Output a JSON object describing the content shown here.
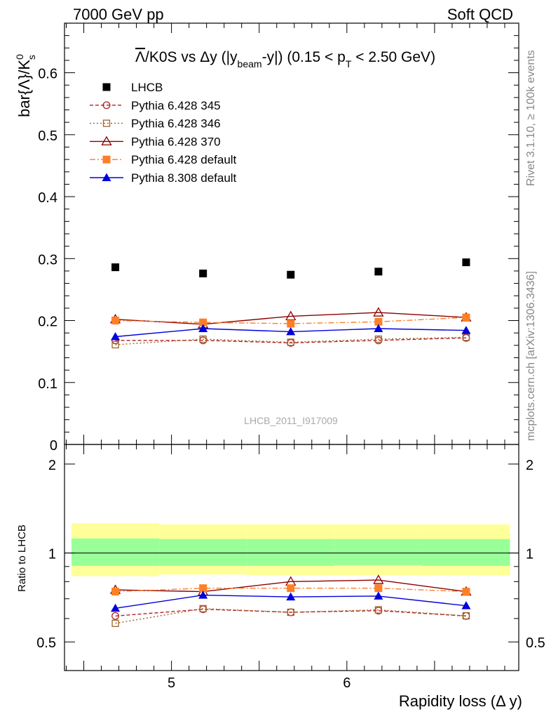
{
  "header": {
    "left": "7000 GeV pp",
    "right": "Soft QCD"
  },
  "side_labels": {
    "rivet": "Rivet 3.1.10, ≥ 100k events",
    "mcplots": "mcplots.cern.ch [arXiv:1306.3436]"
  },
  "title": {
    "overline": "Λ",
    "rest": "/K0S vs Δy (|y",
    "sub_beam": "beam",
    "mid": "-y|) (0.15 < p",
    "sub_t": "T",
    "end": " < 2.50 GeV)"
  },
  "watermark": "LHCB_2011_I917009",
  "chart_data": [
    {
      "type": "scatter",
      "panel": "main",
      "ylabel_main": "bar{Λ}/K",
      "ylabel_sup": "0",
      "ylabel_sub": "s",
      "ylim": [
        0,
        0.68
      ],
      "yticks": [
        {
          "v": 0,
          "label": "0"
        },
        {
          "v": 0.1,
          "label": "0.1"
        },
        {
          "v": 0.2,
          "label": "0.2"
        },
        {
          "v": 0.3,
          "label": "0.3"
        },
        {
          "v": 0.4,
          "label": "0.4"
        },
        {
          "v": 0.5,
          "label": "0.5"
        },
        {
          "v": 0.6,
          "label": "0.6"
        }
      ],
      "xlim": [
        4.39,
        6.98
      ],
      "x": [
        4.68,
        5.18,
        5.68,
        6.18,
        6.68
      ],
      "series": [
        {
          "name": "LHCB",
          "values": [
            0.286,
            0.276,
            0.274,
            0.279,
            0.294
          ],
          "color": "#000000",
          "marker": "square-filled",
          "line": "none"
        },
        {
          "name": "Pythia 6.428 345",
          "values": [
            0.168,
            0.168,
            0.164,
            0.168,
            0.172
          ],
          "color": "#b22222",
          "marker": "circle-open",
          "line": "dashed"
        },
        {
          "name": "Pythia 6.428 346",
          "values": [
            0.161,
            0.17,
            0.165,
            0.17,
            0.173
          ],
          "color": "#a0642a",
          "marker": "square-open",
          "line": "dotted"
        },
        {
          "name": "Pythia 6.428 370",
          "values": [
            0.202,
            0.194,
            0.207,
            0.213,
            0.205
          ],
          "color": "#8b0000",
          "marker": "triangle-open",
          "line": "solid"
        },
        {
          "name": "Pythia 6.428 default",
          "values": [
            0.2,
            0.197,
            0.195,
            0.198,
            0.205
          ],
          "color": "#ff7f27",
          "marker": "square-filled",
          "line": "dashdot"
        },
        {
          "name": "Pythia 8.308 default",
          "values": [
            0.174,
            0.187,
            0.182,
            0.187,
            0.184
          ],
          "color": "#0000dd",
          "marker": "triangle-filled",
          "line": "solid"
        }
      ]
    },
    {
      "type": "line",
      "panel": "ratio",
      "ylabel": "Ratio to LHCB",
      "ylim": [
        0.4,
        2.33
      ],
      "yticks": [
        {
          "v": 0.5,
          "label": "0.5"
        },
        {
          "v": 1,
          "label": "1"
        },
        {
          "v": 2,
          "label": "2"
        }
      ],
      "xlabel": "Rapidity loss (Δ y)",
      "xticks": [
        {
          "v": 5,
          "label": "5"
        },
        {
          "v": 6,
          "label": "6"
        }
      ],
      "bands": {
        "x_edges": [
          4.43,
          4.93,
          5.43,
          5.93,
          6.43,
          6.93
        ],
        "yellow_lo": [
          0.835,
          0.845,
          0.84,
          0.84,
          0.84
        ],
        "yellow_hi": [
          1.26,
          1.25,
          1.25,
          1.25,
          1.25
        ],
        "green_lo": [
          0.905,
          0.905,
          0.905,
          0.91,
          0.905
        ],
        "green_hi": [
          1.12,
          1.115,
          1.115,
          1.115,
          1.115
        ],
        "yellow_color": "#ffff99",
        "green_color": "#99ff99"
      },
      "x": [
        4.68,
        5.18,
        5.68,
        6.18,
        6.68
      ],
      "series": [
        {
          "name": "Pythia 6.428 345",
          "values": [
            0.612,
            0.645,
            0.63,
            0.638,
            0.612
          ],
          "color": "#b22222",
          "marker": "circle-open",
          "line": "dashed"
        },
        {
          "name": "Pythia 6.428 346",
          "values": [
            0.578,
            0.648,
            0.63,
            0.642,
            0.613
          ],
          "color": "#a0642a",
          "marker": "square-open",
          "line": "dotted"
        },
        {
          "name": "Pythia 6.428 370",
          "values": [
            0.75,
            0.74,
            0.8,
            0.81,
            0.74
          ],
          "color": "#8b0000",
          "marker": "triangle-open",
          "line": "solid"
        },
        {
          "name": "Pythia 6.428 default",
          "values": [
            0.74,
            0.76,
            0.76,
            0.76,
            0.74
          ],
          "color": "#ff7f27",
          "marker": "square-filled",
          "line": "dashdot"
        },
        {
          "name": "Pythia 8.308 default",
          "values": [
            0.65,
            0.72,
            0.71,
            0.715,
            0.663
          ],
          "color": "#0000dd",
          "marker": "triangle-filled",
          "line": "solid"
        }
      ]
    }
  ]
}
